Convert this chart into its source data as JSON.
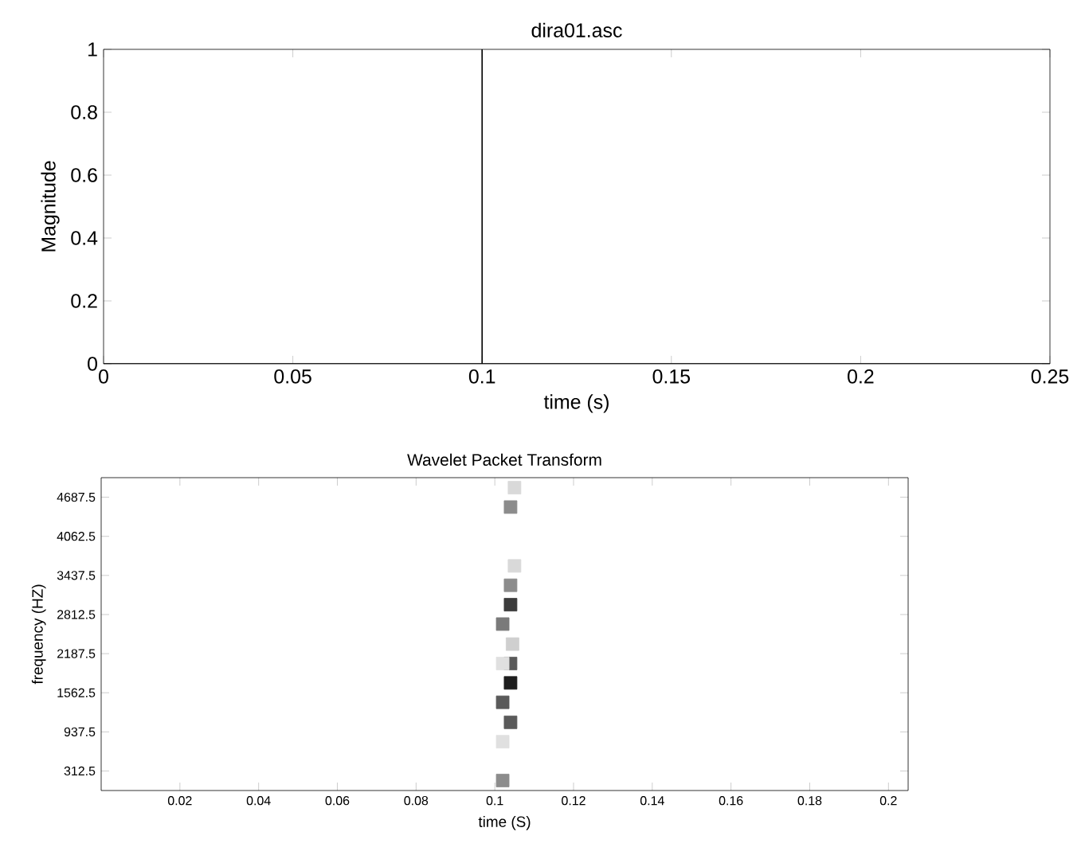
{
  "chart_data": [
    {
      "type": "line",
      "title": "dira01.asc",
      "xlabel": "time (s)",
      "ylabel": "Magnitude",
      "x": [
        0,
        0.1,
        0.1,
        0.1,
        0.25
      ],
      "values": [
        0,
        0,
        1,
        0,
        0
      ],
      "color": "#000000",
      "xlim": [
        0,
        0.25
      ],
      "ylim": [
        0,
        1
      ],
      "xticks": [
        0,
        0.05,
        0.1,
        0.15,
        0.2,
        0.25
      ],
      "yticks": [
        0,
        0.2,
        0.4,
        0.6,
        0.8,
        1
      ]
    },
    {
      "type": "scatter",
      "title": "Wavelet Packet Transform",
      "xlabel": "time (S)",
      "ylabel": "frequency (HZ)",
      "marker": "square",
      "x": [
        0.105,
        0.104,
        0.105,
        0.104,
        0.104,
        0.102,
        0.1045,
        0.104,
        0.102,
        0.104,
        0.102,
        0.104,
        0.102,
        0.102
      ],
      "values": [
        4840,
        4530,
        3590,
        3280,
        2970,
        2660,
        2340,
        2030,
        2030,
        1720,
        1410,
        1090,
        780,
        160
      ],
      "colors": [
        "#d9d9d9",
        "#8c8c8c",
        "#d9d9d9",
        "#8c8c8c",
        "#3c3c3c",
        "#7a7a7a",
        "#cfcfcf",
        "#5a5a5a",
        "#e0e0e0",
        "#1e1e1e",
        "#5a5a5a",
        "#5a5a5a",
        "#e0e0e0",
        "#8c8c8c"
      ],
      "xlim": [
        0,
        0.205
      ],
      "ylim": [
        0,
        5000
      ],
      "xticks": [
        0.02,
        0.04,
        0.06,
        0.08,
        0.1,
        0.12,
        0.14,
        0.16,
        0.18,
        0.2
      ],
      "yticks": [
        312.5,
        937.5,
        1562.5,
        2187.5,
        2812.5,
        3437.5,
        4062.5,
        4687.5
      ]
    }
  ]
}
